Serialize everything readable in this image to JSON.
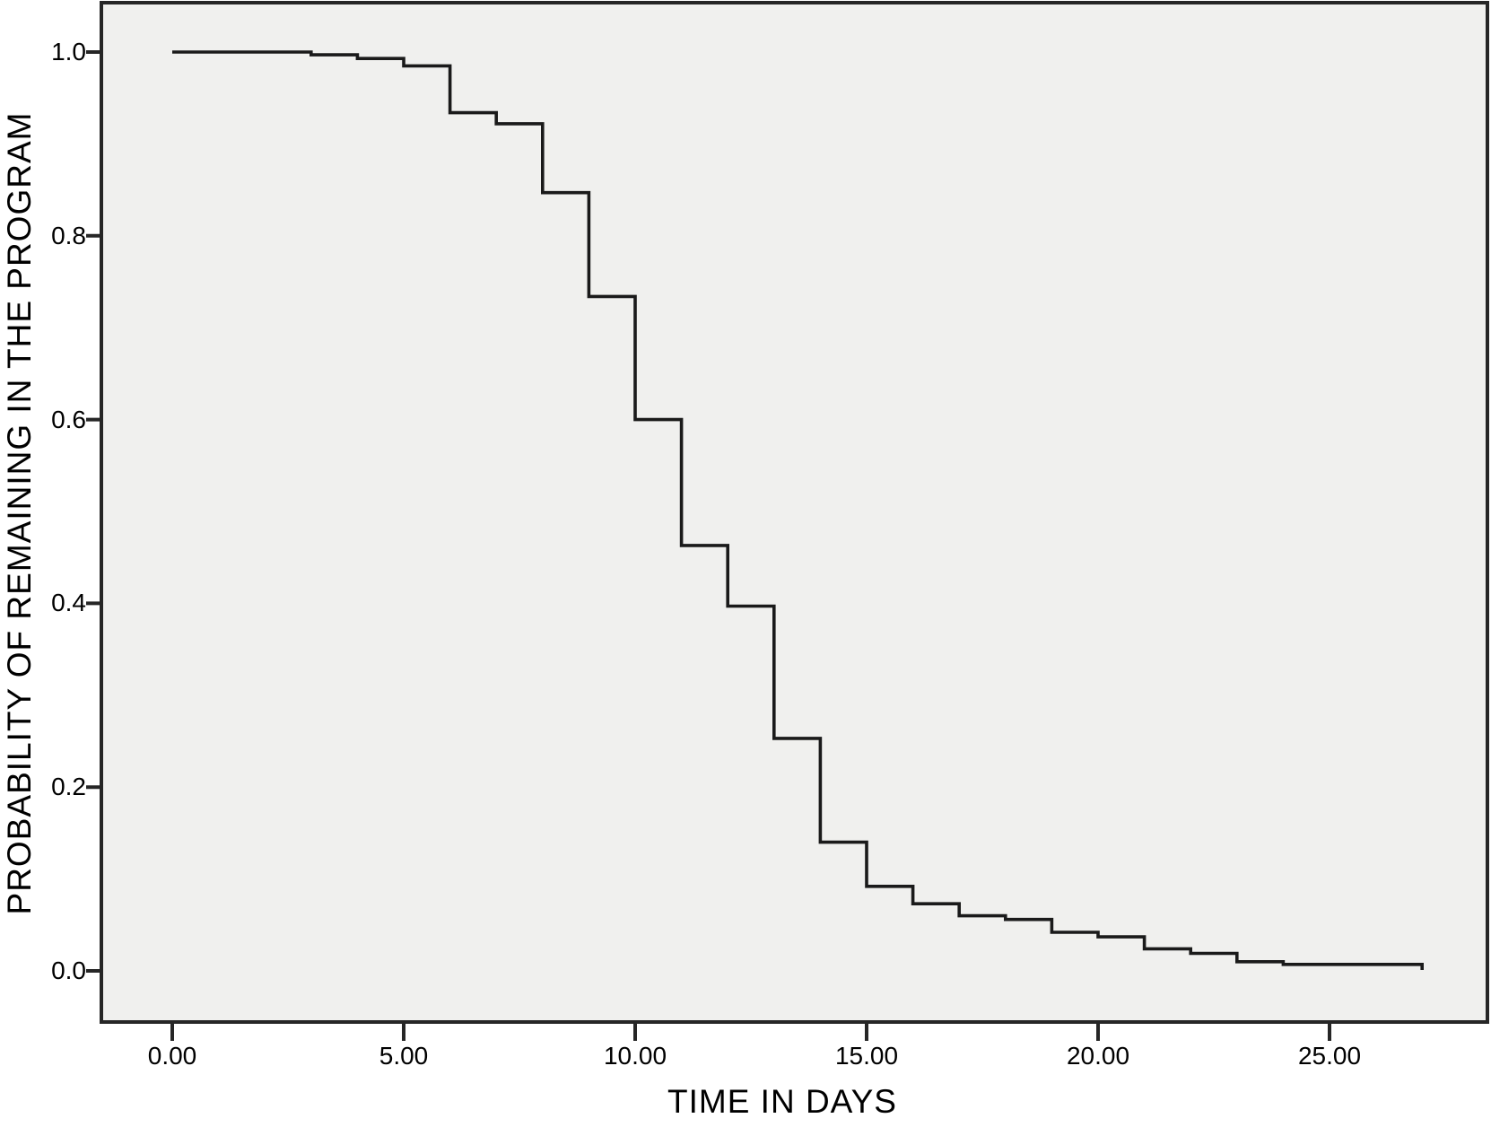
{
  "chart_data": {
    "type": "line",
    "subtype": "step-survival-curve",
    "title": "",
    "xlabel": "TIME IN DAYS",
    "ylabel": "PROBABILITY OF REMAINING IN THE PROGRAM",
    "x_tick_labels": [
      "0.00",
      "5.00",
      "10.00",
      "15.00",
      "20.00",
      "25.00"
    ],
    "x_tick_values": [
      0,
      5,
      10,
      15,
      20,
      25
    ],
    "y_tick_labels": [
      "0.0",
      "0.2",
      "0.4",
      "0.6",
      "0.8",
      "1.0"
    ],
    "y_tick_values": [
      0,
      0.2,
      0.4,
      0.6,
      0.8,
      1.0
    ],
    "xlim": [
      -1.6,
      28.4
    ],
    "ylim": [
      -0.055,
      1.055
    ],
    "grid": false,
    "legend_position": "none",
    "series": [
      {
        "name": "probability-of-remaining",
        "points": [
          [
            0,
            1.0
          ],
          [
            3,
            0.997
          ],
          [
            4,
            0.993
          ],
          [
            5,
            0.985
          ],
          [
            6,
            0.934
          ],
          [
            7,
            0.922
          ],
          [
            8,
            0.847
          ],
          [
            9,
            0.734
          ],
          [
            10,
            0.6
          ],
          [
            11,
            0.463
          ],
          [
            12,
            0.397
          ],
          [
            13,
            0.253
          ],
          [
            14,
            0.14
          ],
          [
            15,
            0.092
          ],
          [
            16,
            0.073
          ],
          [
            17,
            0.06
          ],
          [
            18,
            0.056
          ],
          [
            19,
            0.042
          ],
          [
            20,
            0.037
          ],
          [
            21,
            0.024
          ],
          [
            22,
            0.019
          ],
          [
            23,
            0.01
          ],
          [
            24,
            0.007
          ],
          [
            27,
            0.007
          ]
        ],
        "end_tick": [
          27,
          0.001
        ]
      }
    ]
  },
  "colors": {
    "figure_background": "#ffffff",
    "plot_background": "#f0f0ee",
    "curve": "#1a1a1a",
    "axis": "#262626",
    "text": "#000000"
  }
}
